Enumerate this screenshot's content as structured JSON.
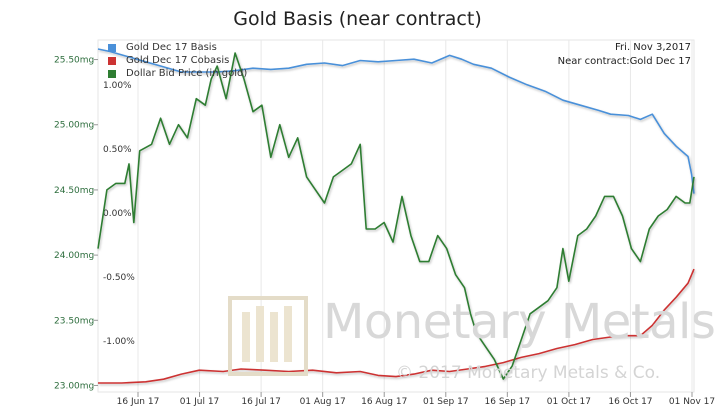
{
  "chart_data": {
    "type": "line",
    "title": "Gold Basis (near contract)",
    "info": {
      "date": "Fri. Nov 3,2017",
      "near_contract": "Near contract:Gold Dec 17"
    },
    "watermark": {
      "text": "Monetary Metals",
      "copyright": "© 2017 Monetary Metals & Co."
    },
    "x_axis": {
      "ticks": [
        "16 Jun 17",
        "01 Jul 17",
        "16 Jul 17",
        "01 Aug 17",
        "16 Aug 17",
        "01 Sep 17",
        "16 Sep 17",
        "01 Oct 17",
        "16 Oct 17",
        "01 Nov 17"
      ]
    },
    "left_axis": {
      "ticks": [
        "25.50mg",
        "25.00mg",
        "24.50mg",
        "24.00mg",
        "23.50mg",
        "23.00mg"
      ],
      "tick_values": [
        25.5,
        25.0,
        24.5,
        24.0,
        23.5,
        23.0
      ],
      "range": [
        22.95,
        25.65
      ]
    },
    "right_axis": {
      "ticks": [
        "1.00%",
        "0.50%",
        "0.00%",
        "-0.50%",
        "-1.00%"
      ],
      "tick_values": [
        1.0,
        0.5,
        0.0,
        -0.5,
        -1.0
      ],
      "range": [
        -1.4,
        1.35
      ]
    },
    "x_range": [
      0,
      100
    ],
    "series": [
      {
        "name": "Gold Dec 17 Basis",
        "color": "#4a90d9",
        "axis": "right",
        "points": [
          [
            0,
            1.28
          ],
          [
            2,
            1.26
          ],
          [
            5,
            1.22
          ],
          [
            8,
            1.18
          ],
          [
            11,
            1.14
          ],
          [
            14,
            1.1
          ],
          [
            17,
            1.1
          ],
          [
            20,
            1.1
          ],
          [
            23,
            1.11
          ],
          [
            26,
            1.13
          ],
          [
            29,
            1.12
          ],
          [
            32,
            1.13
          ],
          [
            35,
            1.16
          ],
          [
            38,
            1.17
          ],
          [
            41,
            1.15
          ],
          [
            44,
            1.19
          ],
          [
            47,
            1.18
          ],
          [
            50,
            1.19
          ],
          [
            53,
            1.2
          ],
          [
            56,
            1.17
          ],
          [
            59,
            1.23
          ],
          [
            61,
            1.2
          ],
          [
            63,
            1.16
          ],
          [
            66,
            1.13
          ],
          [
            69,
            1.06
          ],
          [
            72,
            1.0
          ],
          [
            75,
            0.95
          ],
          [
            78,
            0.88
          ],
          [
            81,
            0.84
          ],
          [
            84,
            0.8
          ],
          [
            86,
            0.77
          ],
          [
            89,
            0.76
          ],
          [
            91,
            0.73
          ],
          [
            93,
            0.77
          ],
          [
            95,
            0.62
          ],
          [
            97,
            0.52
          ],
          [
            99,
            0.44
          ],
          [
            99.6,
            0.3
          ],
          [
            100,
            0.15
          ]
        ]
      },
      {
        "name": "Gold Dec 17 Cobasis",
        "color": "#cc3333",
        "axis": "right",
        "points": [
          [
            0,
            -1.33
          ],
          [
            4,
            -1.33
          ],
          [
            8,
            -1.32
          ],
          [
            11,
            -1.3
          ],
          [
            14,
            -1.26
          ],
          [
            17,
            -1.23
          ],
          [
            21,
            -1.24
          ],
          [
            24,
            -1.22
          ],
          [
            28,
            -1.23
          ],
          [
            32,
            -1.24
          ],
          [
            36,
            -1.23
          ],
          [
            40,
            -1.25
          ],
          [
            44,
            -1.24
          ],
          [
            47,
            -1.27
          ],
          [
            50,
            -1.28
          ],
          [
            53,
            -1.26
          ],
          [
            56,
            -1.23
          ],
          [
            59,
            -1.24
          ],
          [
            62,
            -1.22
          ],
          [
            65,
            -1.2
          ],
          [
            68,
            -1.17
          ],
          [
            71,
            -1.13
          ],
          [
            74,
            -1.1
          ],
          [
            77,
            -1.06
          ],
          [
            80,
            -1.03
          ],
          [
            83,
            -0.99
          ],
          [
            86,
            -0.97
          ],
          [
            89,
            -0.96
          ],
          [
            91,
            -0.96
          ],
          [
            93,
            -0.88
          ],
          [
            95,
            -0.76
          ],
          [
            97,
            -0.66
          ],
          [
            99,
            -0.55
          ],
          [
            100,
            -0.44
          ]
        ]
      },
      {
        "name": "Dollar Bid Price (in gold)",
        "color": "#2e7d32",
        "axis": "left",
        "points": [
          [
            0,
            24.05
          ],
          [
            1.5,
            24.5
          ],
          [
            3,
            24.55
          ],
          [
            4.5,
            24.55
          ],
          [
            5.2,
            24.7
          ],
          [
            6,
            24.25
          ],
          [
            7,
            24.8
          ],
          [
            9,
            24.85
          ],
          [
            10.5,
            25.05
          ],
          [
            12,
            24.85
          ],
          [
            13.5,
            25.0
          ],
          [
            15,
            24.9
          ],
          [
            16.5,
            25.2
          ],
          [
            18,
            25.15
          ],
          [
            19,
            25.35
          ],
          [
            20,
            25.45
          ],
          [
            21.5,
            25.2
          ],
          [
            23,
            25.55
          ],
          [
            24.5,
            25.35
          ],
          [
            26,
            25.1
          ],
          [
            27.5,
            25.15
          ],
          [
            29,
            24.75
          ],
          [
            30.5,
            25.0
          ],
          [
            32,
            24.75
          ],
          [
            33.5,
            24.9
          ],
          [
            35,
            24.6
          ],
          [
            36.5,
            24.5
          ],
          [
            38,
            24.4
          ],
          [
            39.5,
            24.6
          ],
          [
            41,
            24.65
          ],
          [
            42.5,
            24.7
          ],
          [
            44,
            24.85
          ],
          [
            45,
            24.2
          ],
          [
            46.5,
            24.2
          ],
          [
            48,
            24.25
          ],
          [
            49.5,
            24.1
          ],
          [
            51,
            24.45
          ],
          [
            52.5,
            24.15
          ],
          [
            54,
            23.95
          ],
          [
            55.5,
            23.95
          ],
          [
            57,
            24.15
          ],
          [
            58.5,
            24.05
          ],
          [
            60,
            23.85
          ],
          [
            61.5,
            23.75
          ],
          [
            62.5,
            23.55
          ],
          [
            63.5,
            23.4
          ],
          [
            65,
            23.3
          ],
          [
            66.5,
            23.2
          ],
          [
            68,
            23.05
          ],
          [
            69.5,
            23.15
          ],
          [
            71,
            23.35
          ],
          [
            72.5,
            23.55
          ],
          [
            74,
            23.6
          ],
          [
            75.5,
            23.65
          ],
          [
            77,
            23.75
          ],
          [
            78,
            24.05
          ],
          [
            79,
            23.8
          ],
          [
            80.5,
            24.15
          ],
          [
            82,
            24.2
          ],
          [
            83.5,
            24.3
          ],
          [
            85,
            24.45
          ],
          [
            86.5,
            24.45
          ],
          [
            88,
            24.3
          ],
          [
            89.5,
            24.05
          ],
          [
            91,
            23.95
          ],
          [
            92.5,
            24.2
          ],
          [
            94,
            24.3
          ],
          [
            95.5,
            24.35
          ],
          [
            97,
            24.45
          ],
          [
            98.5,
            24.4
          ],
          [
            99.3,
            24.4
          ],
          [
            100,
            24.6
          ]
        ]
      }
    ]
  }
}
